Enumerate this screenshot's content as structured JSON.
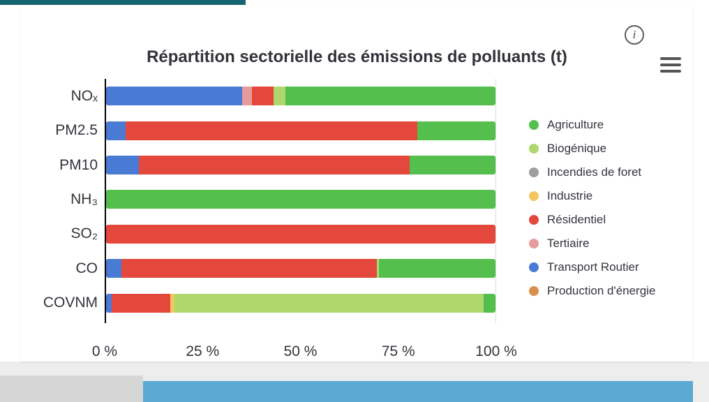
{
  "page": {
    "top_accent_color": "#156570",
    "footer_strip_color": "#ededed",
    "footer_bar_color": "#59A9D3"
  },
  "header": {
    "info_glyph": "i"
  },
  "chart_data": {
    "type": "bar",
    "stacked": true,
    "orientation": "horizontal",
    "title": "Répartition sectorielle des émissions de polluants (t)",
    "categories": [
      "NOₓ",
      "PM2.5",
      "PM10",
      "NH₃",
      "SO₂",
      "CO",
      "COVNM"
    ],
    "x_ticks": [
      "0 %",
      "25 %",
      "50 %",
      "75 %",
      "100 %"
    ],
    "x_range": [
      0,
      100
    ],
    "xlabel": "",
    "ylabel": "",
    "grid": "axis-line at 0 and light line at 100 only",
    "series_colors": {
      "Agriculture": "#55BF4D",
      "Biogénique": "#AFD86C",
      "Incendies de foret": "#9E9E9E",
      "Industrie": "#F3C75F",
      "Résidentiel": "#E4473C",
      "Tertiaire": "#E89B9B",
      "Transport Routier": "#4A7BD4",
      "Production d'énergie": "#DB8F4D"
    },
    "rows": [
      {
        "category": "NOₓ",
        "segments": [
          {
            "series": "Transport Routier",
            "value": 35
          },
          {
            "series": "Tertiaire",
            "value": 2.5
          },
          {
            "series": "Résidentiel",
            "value": 5.5
          },
          {
            "series": "Biogénique",
            "value": 3
          },
          {
            "series": "Agriculture",
            "value": 54
          }
        ]
      },
      {
        "category": "PM2.5",
        "segments": [
          {
            "series": "Transport Routier",
            "value": 5
          },
          {
            "series": "Résidentiel",
            "value": 75
          },
          {
            "series": "Agriculture",
            "value": 20
          }
        ]
      },
      {
        "category": "PM10",
        "segments": [
          {
            "series": "Transport Routier",
            "value": 8.5
          },
          {
            "series": "Résidentiel",
            "value": 69.5
          },
          {
            "series": "Agriculture",
            "value": 22
          }
        ]
      },
      {
        "category": "NH₃",
        "segments": [
          {
            "series": "Agriculture",
            "value": 100
          }
        ]
      },
      {
        "category": "SO₂",
        "segments": [
          {
            "series": "Résidentiel",
            "value": 100
          }
        ]
      },
      {
        "category": "CO",
        "segments": [
          {
            "series": "Transport Routier",
            "value": 4
          },
          {
            "series": "Résidentiel",
            "value": 65.5
          },
          {
            "series": "Biogénique",
            "value": 0.5
          },
          {
            "series": "Agriculture",
            "value": 30
          }
        ]
      },
      {
        "category": "COVNM",
        "segments": [
          {
            "series": "Transport Routier",
            "value": 1.5
          },
          {
            "series": "Résidentiel",
            "value": 15
          },
          {
            "series": "Industrie",
            "value": 1
          },
          {
            "series": "Biogénique",
            "value": 79.5
          },
          {
            "series": "Agriculture",
            "value": 3
          }
        ]
      }
    ],
    "legend": {
      "position": "right",
      "items": [
        "Agriculture",
        "Biogénique",
        "Incendies de foret",
        "Industrie",
        "Résidentiel",
        "Tertiaire",
        "Transport Routier",
        "Production d'énergie"
      ]
    }
  }
}
